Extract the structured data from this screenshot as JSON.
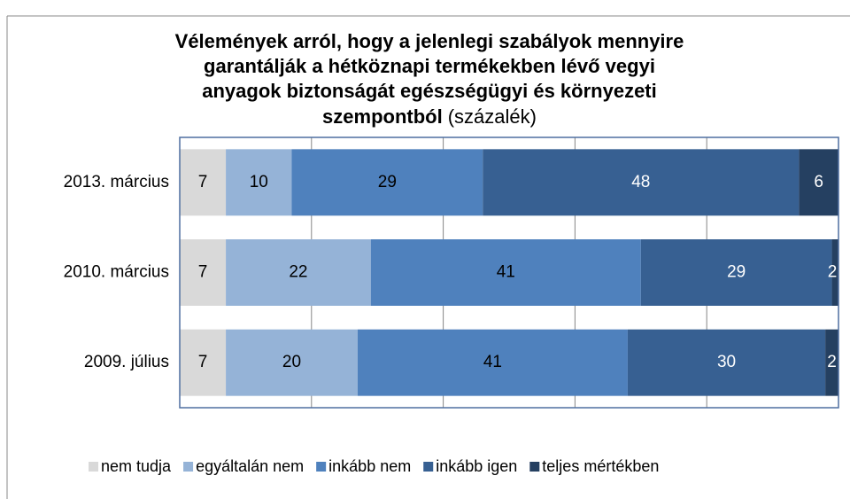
{
  "chart_data": {
    "type": "bar",
    "orientation": "horizontal",
    "stacked": true,
    "title_lines": [
      "Vélemények arról, hogy a jelenlegi szabályok mennyire",
      "garantálják a hétköznapi termékekben lévő vegyi",
      "anyagok biztonságát egészségügyi és környezeti",
      "szempontból"
    ],
    "subtitle": "(százalék)",
    "categories": [
      "2013. március",
      "2010. március",
      "2009. július"
    ],
    "series": [
      {
        "name": "nem tudja",
        "color": "#d9d9d9",
        "label_color": "#000000",
        "values": [
          7,
          7,
          7
        ]
      },
      {
        "name": "egyáltalán nem",
        "color": "#95b3d7",
        "label_color": "#000000",
        "values": [
          10,
          22,
          20
        ]
      },
      {
        "name": "inkább nem",
        "color": "#4f81bd",
        "label_color": "#000000",
        "values": [
          29,
          41,
          41
        ]
      },
      {
        "name": "inkább igen",
        "color": "#376092",
        "label_color": "#ffffff",
        "values": [
          48,
          29,
          30
        ]
      },
      {
        "name": "teljes mértékben",
        "color": "#254061",
        "label_color": "#ffffff",
        "values": [
          6,
          2,
          2
        ]
      }
    ],
    "xlim": [
      0,
      100
    ],
    "xticks": [
      0,
      20,
      40,
      60,
      80,
      100
    ],
    "grid": true,
    "legend": "bottom"
  }
}
